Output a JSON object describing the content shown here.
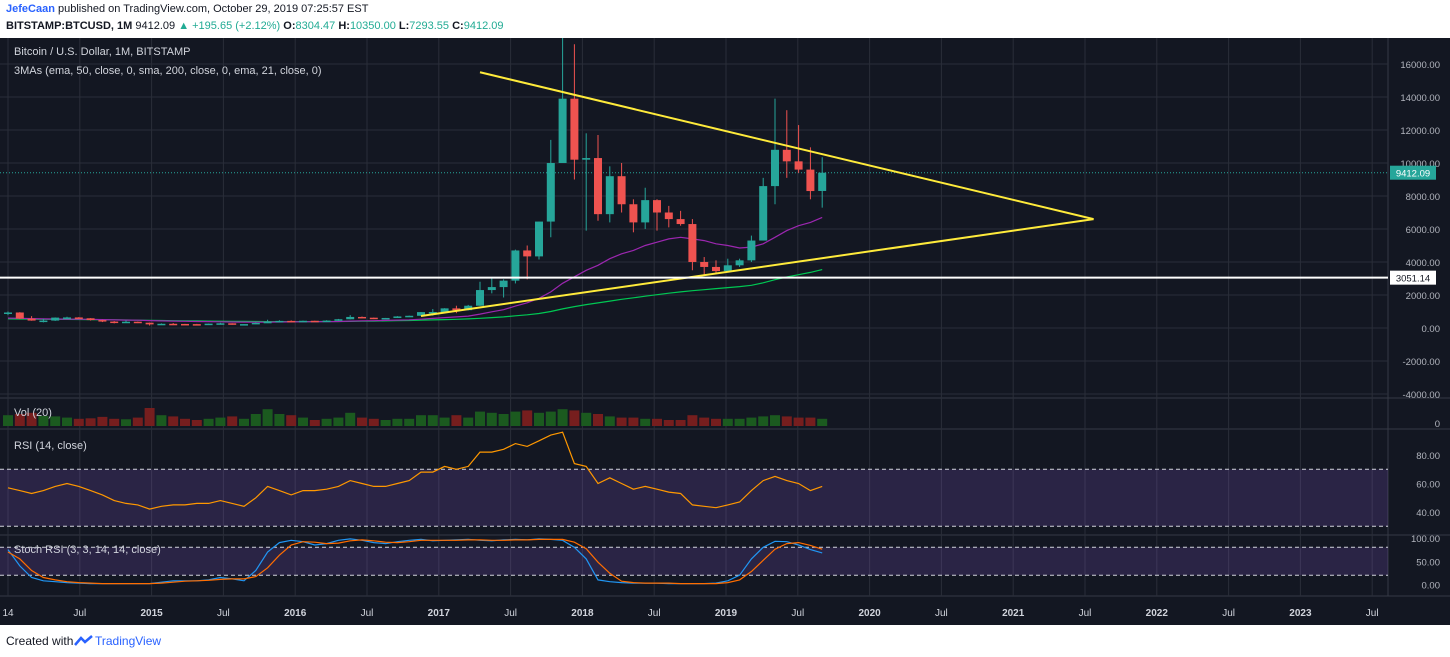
{
  "header": {
    "author": "JefeCaan",
    "published_text": "published on TradingView.com, October 29, 2019 07:25:57 EST",
    "symbol": "BITSTAMP:BTCUSD, 1M",
    "last": "9412.09",
    "change": "▲ +195.65 (+2.12%)",
    "open_label": "O:",
    "open": "8304.47",
    "high_label": "H:",
    "high": "10350.00",
    "low_label": "L:",
    "low": "7293.55",
    "close_label": "C:",
    "close": "9412.09"
  },
  "legend": {
    "title": "Bitcoin / U.S. Dollar, 1M, BITSTAMP",
    "mas": "3MAs (ema, 50, close, 0, sma, 200, close, 0, ema, 21, close, 0)",
    "volume": "Vol (20)",
    "rsi": "RSI (14, close)",
    "stoch": "Stoch RSI (3, 3, 14, 14, close)"
  },
  "price_axis": {
    "ticks": [
      "16000.00",
      "14000.00",
      "12000.00",
      "10000.00",
      "8000.00",
      "6000.00",
      "4000.00",
      "2000.00",
      "0.00",
      "-2000.00",
      "-4000.00"
    ],
    "current_price_label": "9412.09",
    "support_label": "3051.14"
  },
  "volume_axis": {
    "ticks": [
      "0"
    ]
  },
  "rsi_axis": {
    "ticks": [
      "80.00",
      "60.00",
      "40.00"
    ]
  },
  "stoch_axis": {
    "ticks": [
      "100.00",
      "50.00",
      "0.00"
    ]
  },
  "time_axis": {
    "labels": [
      "14",
      "Jul",
      "2015",
      "Jul",
      "2016",
      "Jul",
      "2017",
      "Jul",
      "2018",
      "Jul",
      "2019",
      "Jul",
      "2020",
      "Jul",
      "2021",
      "Jul",
      "2022",
      "Jul",
      "2023",
      "Jul"
    ]
  },
  "footer": {
    "created": "Created with",
    "brand": "TradingView"
  },
  "colors": {
    "background": "#131722",
    "up": "#26a69a",
    "down": "#ef5350",
    "trendline": "#ffeb3b",
    "support": "#ffffff",
    "ema50": "#00c853",
    "ema21": "#9c27b0",
    "rsi_line": "#ff9800",
    "stoch_k": "#2196f3",
    "stoch_d": "#ff6d00",
    "header_green": "#22ab94"
  },
  "chart_data": {
    "type": "candlestick",
    "symbol": "BITSTAMP:BTCUSD",
    "interval": "1M",
    "price_range": [
      -4000,
      17500
    ],
    "candles": [
      {
        "t": "2014-01",
        "o": 870,
        "h": 1000,
        "l": 780,
        "c": 940
      },
      {
        "t": "2014-02",
        "o": 940,
        "h": 960,
        "l": 540,
        "c": 570
      },
      {
        "t": "2014-03",
        "o": 570,
        "h": 720,
        "l": 440,
        "c": 450
      },
      {
        "t": "2014-04",
        "o": 450,
        "h": 560,
        "l": 340,
        "c": 450
      },
      {
        "t": "2014-05",
        "o": 450,
        "h": 640,
        "l": 430,
        "c": 630
      },
      {
        "t": "2014-06",
        "o": 630,
        "h": 680,
        "l": 560,
        "c": 640
      },
      {
        "t": "2014-07",
        "o": 640,
        "h": 660,
        "l": 560,
        "c": 590
      },
      {
        "t": "2014-08",
        "o": 590,
        "h": 600,
        "l": 450,
        "c": 480
      },
      {
        "t": "2014-09",
        "o": 480,
        "h": 500,
        "l": 360,
        "c": 390
      },
      {
        "t": "2014-10",
        "o": 390,
        "h": 420,
        "l": 280,
        "c": 340
      },
      {
        "t": "2014-11",
        "o": 340,
        "h": 460,
        "l": 320,
        "c": 380
      },
      {
        "t": "2014-12",
        "o": 380,
        "h": 390,
        "l": 300,
        "c": 320
      },
      {
        "t": "2015-01",
        "o": 320,
        "h": 330,
        "l": 150,
        "c": 220
      },
      {
        "t": "2015-02",
        "o": 220,
        "h": 280,
        "l": 210,
        "c": 255
      },
      {
        "t": "2015-03",
        "o": 255,
        "h": 300,
        "l": 240,
        "c": 245
      },
      {
        "t": "2015-04",
        "o": 245,
        "h": 250,
        "l": 220,
        "c": 235
      },
      {
        "t": "2015-05",
        "o": 235,
        "h": 250,
        "l": 225,
        "c": 230
      },
      {
        "t": "2015-06",
        "o": 230,
        "h": 265,
        "l": 220,
        "c": 263
      },
      {
        "t": "2015-07",
        "o": 263,
        "h": 315,
        "l": 250,
        "c": 284
      },
      {
        "t": "2015-08",
        "o": 284,
        "h": 285,
        "l": 200,
        "c": 230
      },
      {
        "t": "2015-09",
        "o": 230,
        "h": 245,
        "l": 225,
        "c": 236
      },
      {
        "t": "2015-10",
        "o": 236,
        "h": 330,
        "l": 235,
        "c": 311
      },
      {
        "t": "2015-11",
        "o": 311,
        "h": 500,
        "l": 300,
        "c": 377
      },
      {
        "t": "2015-12",
        "o": 377,
        "h": 470,
        "l": 350,
        "c": 430
      },
      {
        "t": "2016-01",
        "o": 430,
        "h": 460,
        "l": 350,
        "c": 368
      },
      {
        "t": "2016-02",
        "o": 368,
        "h": 445,
        "l": 365,
        "c": 437
      },
      {
        "t": "2016-03",
        "o": 437,
        "h": 440,
        "l": 400,
        "c": 416
      },
      {
        "t": "2016-04",
        "o": 416,
        "h": 470,
        "l": 414,
        "c": 448
      },
      {
        "t": "2016-05",
        "o": 448,
        "h": 550,
        "l": 440,
        "c": 530
      },
      {
        "t": "2016-06",
        "o": 530,
        "h": 780,
        "l": 525,
        "c": 670
      },
      {
        "t": "2016-07",
        "o": 670,
        "h": 700,
        "l": 600,
        "c": 624
      },
      {
        "t": "2016-08",
        "o": 624,
        "h": 630,
        "l": 540,
        "c": 573
      },
      {
        "t": "2016-09",
        "o": 573,
        "h": 610,
        "l": 570,
        "c": 608
      },
      {
        "t": "2016-10",
        "o": 608,
        "h": 720,
        "l": 605,
        "c": 700
      },
      {
        "t": "2016-11",
        "o": 700,
        "h": 750,
        "l": 680,
        "c": 740
      },
      {
        "t": "2016-12",
        "o": 740,
        "h": 970,
        "l": 740,
        "c": 963
      },
      {
        "t": "2017-01",
        "o": 963,
        "h": 1150,
        "l": 750,
        "c": 970
      },
      {
        "t": "2017-02",
        "o": 970,
        "h": 1200,
        "l": 940,
        "c": 1190
      },
      {
        "t": "2017-03",
        "o": 1190,
        "h": 1350,
        "l": 900,
        "c": 1080
      },
      {
        "t": "2017-04",
        "o": 1080,
        "h": 1400,
        "l": 1070,
        "c": 1350
      },
      {
        "t": "2017-05",
        "o": 1350,
        "h": 2800,
        "l": 1350,
        "c": 2300
      },
      {
        "t": "2017-06",
        "o": 2300,
        "h": 3000,
        "l": 2100,
        "c": 2480
      },
      {
        "t": "2017-07",
        "o": 2480,
        "h": 2950,
        "l": 1850,
        "c": 2870
      },
      {
        "t": "2017-08",
        "o": 2870,
        "h": 4750,
        "l": 2700,
        "c": 4700
      },
      {
        "t": "2017-09",
        "o": 4700,
        "h": 5000,
        "l": 2950,
        "c": 4340
      },
      {
        "t": "2017-10",
        "o": 4340,
        "h": 6450,
        "l": 4150,
        "c": 6450
      },
      {
        "t": "2017-11",
        "o": 6450,
        "h": 11400,
        "l": 5500,
        "c": 10000
      },
      {
        "t": "2017-12",
        "o": 10000,
        "h": 19600,
        "l": 10000,
        "c": 13900
      },
      {
        "t": "2018-01",
        "o": 13900,
        "h": 17200,
        "l": 9000,
        "c": 10200
      },
      {
        "t": "2018-02",
        "o": 10200,
        "h": 11800,
        "l": 5900,
        "c": 10300
      },
      {
        "t": "2018-03",
        "o": 10300,
        "h": 11700,
        "l": 6500,
        "c": 6900
      },
      {
        "t": "2018-04",
        "o": 6900,
        "h": 9800,
        "l": 6400,
        "c": 9200
      },
      {
        "t": "2018-05",
        "o": 9200,
        "h": 10000,
        "l": 7000,
        "c": 7500
      },
      {
        "t": "2018-06",
        "o": 7500,
        "h": 7800,
        "l": 5800,
        "c": 6400
      },
      {
        "t": "2018-07",
        "o": 6400,
        "h": 8500,
        "l": 6000,
        "c": 7750
      },
      {
        "t": "2018-08",
        "o": 7750,
        "h": 7800,
        "l": 5900,
        "c": 7000
      },
      {
        "t": "2018-09",
        "o": 7000,
        "h": 7400,
        "l": 6100,
        "c": 6600
      },
      {
        "t": "2018-10",
        "o": 6600,
        "h": 7100,
        "l": 6200,
        "c": 6300
      },
      {
        "t": "2018-11",
        "o": 6300,
        "h": 6600,
        "l": 3500,
        "c": 4000
      },
      {
        "t": "2018-12",
        "o": 4000,
        "h": 4300,
        "l": 3200,
        "c": 3700
      },
      {
        "t": "2019-01",
        "o": 3700,
        "h": 4100,
        "l": 3350,
        "c": 3450
      },
      {
        "t": "2019-02",
        "o": 3450,
        "h": 4200,
        "l": 3400,
        "c": 3800
      },
      {
        "t": "2019-03",
        "o": 3800,
        "h": 4200,
        "l": 3700,
        "c": 4100
      },
      {
        "t": "2019-04",
        "o": 4100,
        "h": 5600,
        "l": 4000,
        "c": 5300
      },
      {
        "t": "2019-05",
        "o": 5300,
        "h": 9100,
        "l": 5300,
        "c": 8600
      },
      {
        "t": "2019-06",
        "o": 8600,
        "h": 13900,
        "l": 7500,
        "c": 10800
      },
      {
        "t": "2019-07",
        "o": 10800,
        "h": 13200,
        "l": 9100,
        "c": 10100
      },
      {
        "t": "2019-08",
        "o": 10100,
        "h": 12300,
        "l": 9400,
        "c": 9600
      },
      {
        "t": "2019-09",
        "o": 9600,
        "h": 10950,
        "l": 7800,
        "c": 8300
      },
      {
        "t": "2019-10",
        "o": 8304.47,
        "h": 10350,
        "l": 7293.55,
        "c": 9412.09
      }
    ],
    "volume_relative": [
      0.45,
      0.5,
      0.55,
      0.42,
      0.4,
      0.35,
      0.3,
      0.32,
      0.38,
      0.3,
      0.28,
      0.35,
      0.75,
      0.45,
      0.4,
      0.3,
      0.25,
      0.3,
      0.35,
      0.4,
      0.3,
      0.5,
      0.7,
      0.5,
      0.45,
      0.35,
      0.25,
      0.3,
      0.35,
      0.55,
      0.35,
      0.3,
      0.25,
      0.3,
      0.3,
      0.45,
      0.45,
      0.35,
      0.45,
      0.35,
      0.6,
      0.55,
      0.5,
      0.6,
      0.65,
      0.55,
      0.6,
      0.7,
      0.65,
      0.55,
      0.5,
      0.4,
      0.35,
      0.35,
      0.3,
      0.3,
      0.25,
      0.25,
      0.45,
      0.35,
      0.3,
      0.3,
      0.3,
      0.35,
      0.4,
      0.45,
      0.4,
      0.35,
      0.35,
      0.3
    ],
    "rsi": [
      57,
      55,
      53,
      55,
      58,
      60,
      58,
      55,
      52,
      48,
      46,
      45,
      42,
      44,
      45,
      45,
      46,
      46,
      48,
      46,
      44,
      50,
      58,
      55,
      52,
      55,
      55,
      56,
      58,
      62,
      60,
      58,
      58,
      60,
      62,
      68,
      68,
      72,
      70,
      72,
      82,
      82,
      84,
      88,
      86,
      90,
      94,
      96,
      74,
      72,
      60,
      64,
      60,
      56,
      58,
      56,
      54,
      53,
      45,
      44,
      43,
      45,
      47,
      55,
      62,
      65,
      62,
      60,
      55,
      58
    ],
    "ema21": [
      600,
      590,
      570,
      550,
      545,
      540,
      535,
      525,
      510,
      490,
      480,
      470,
      450,
      430,
      420,
      405,
      395,
      385,
      378,
      365,
      355,
      350,
      355,
      365,
      370,
      375,
      380,
      385,
      395,
      420,
      435,
      445,
      460,
      480,
      500,
      535,
      580,
      630,
      670,
      720,
      840,
      980,
      1110,
      1330,
      1530,
      1800,
      2190,
      2710,
      3100,
      3500,
      3800,
      4200,
      4500,
      4700,
      5000,
      5200,
      5400,
      5500,
      5400,
      5300,
      5100,
      5000,
      4850,
      4900,
      5100,
      5500,
      5900,
      6200,
      6400,
      6700
    ],
    "ema50": [
      550,
      545,
      540,
      530,
      525,
      520,
      515,
      510,
      500,
      495,
      485,
      475,
      465,
      455,
      445,
      435,
      428,
      420,
      412,
      405,
      398,
      392,
      390,
      390,
      390,
      390,
      390,
      392,
      395,
      400,
      410,
      420,
      430,
      440,
      455,
      470,
      490,
      510,
      530,
      550,
      590,
      630,
      670,
      740,
      800,
      880,
      1000,
      1160,
      1300,
      1420,
      1520,
      1630,
      1740,
      1830,
      1930,
      2020,
      2110,
      2190,
      2260,
      2320,
      2390,
      2450,
      2510,
      2590,
      2740,
      2930,
      3090,
      3230,
      3370,
      3540
    ],
    "stoch_k": [
      75,
      40,
      15,
      8,
      6,
      4,
      3,
      2,
      2,
      2,
      2,
      2,
      2,
      5,
      8,
      8,
      8,
      10,
      15,
      12,
      8,
      30,
      70,
      90,
      95,
      92,
      85,
      88,
      95,
      98,
      95,
      90,
      88,
      92,
      95,
      97,
      94,
      95,
      96,
      97,
      95,
      94,
      96,
      97,
      96,
      98,
      97,
      95,
      80,
      55,
      10,
      6,
      4,
      3,
      3,
      3,
      2,
      2,
      2,
      2,
      3,
      8,
      20,
      55,
      80,
      93,
      92,
      85,
      75,
      68
    ],
    "stoch_d": [
      70,
      55,
      30,
      15,
      10,
      6,
      4,
      3,
      2,
      2,
      2,
      2,
      2,
      3,
      5,
      7,
      8,
      9,
      11,
      12,
      12,
      17,
      36,
      63,
      85,
      92,
      91,
      88,
      89,
      94,
      96,
      94,
      91,
      90,
      92,
      95,
      95,
      95,
      95,
      96,
      96,
      95,
      95,
      96,
      96,
      97,
      97,
      97,
      91,
      77,
      48,
      24,
      7,
      4,
      3,
      3,
      3,
      2,
      2,
      2,
      2,
      4,
      10,
      28,
      52,
      76,
      88,
      90,
      84,
      76
    ],
    "trendline_upper": {
      "from": {
        "t": "2017-05",
        "price": 15500
      },
      "to": {
        "t": "2021-09",
        "price": 6600
      }
    },
    "trendline_lower": {
      "from": {
        "t": "2016-12",
        "price": 730
      },
      "to": {
        "t": "2021-09",
        "price": 6600
      }
    },
    "support_level": 3051.14
  }
}
